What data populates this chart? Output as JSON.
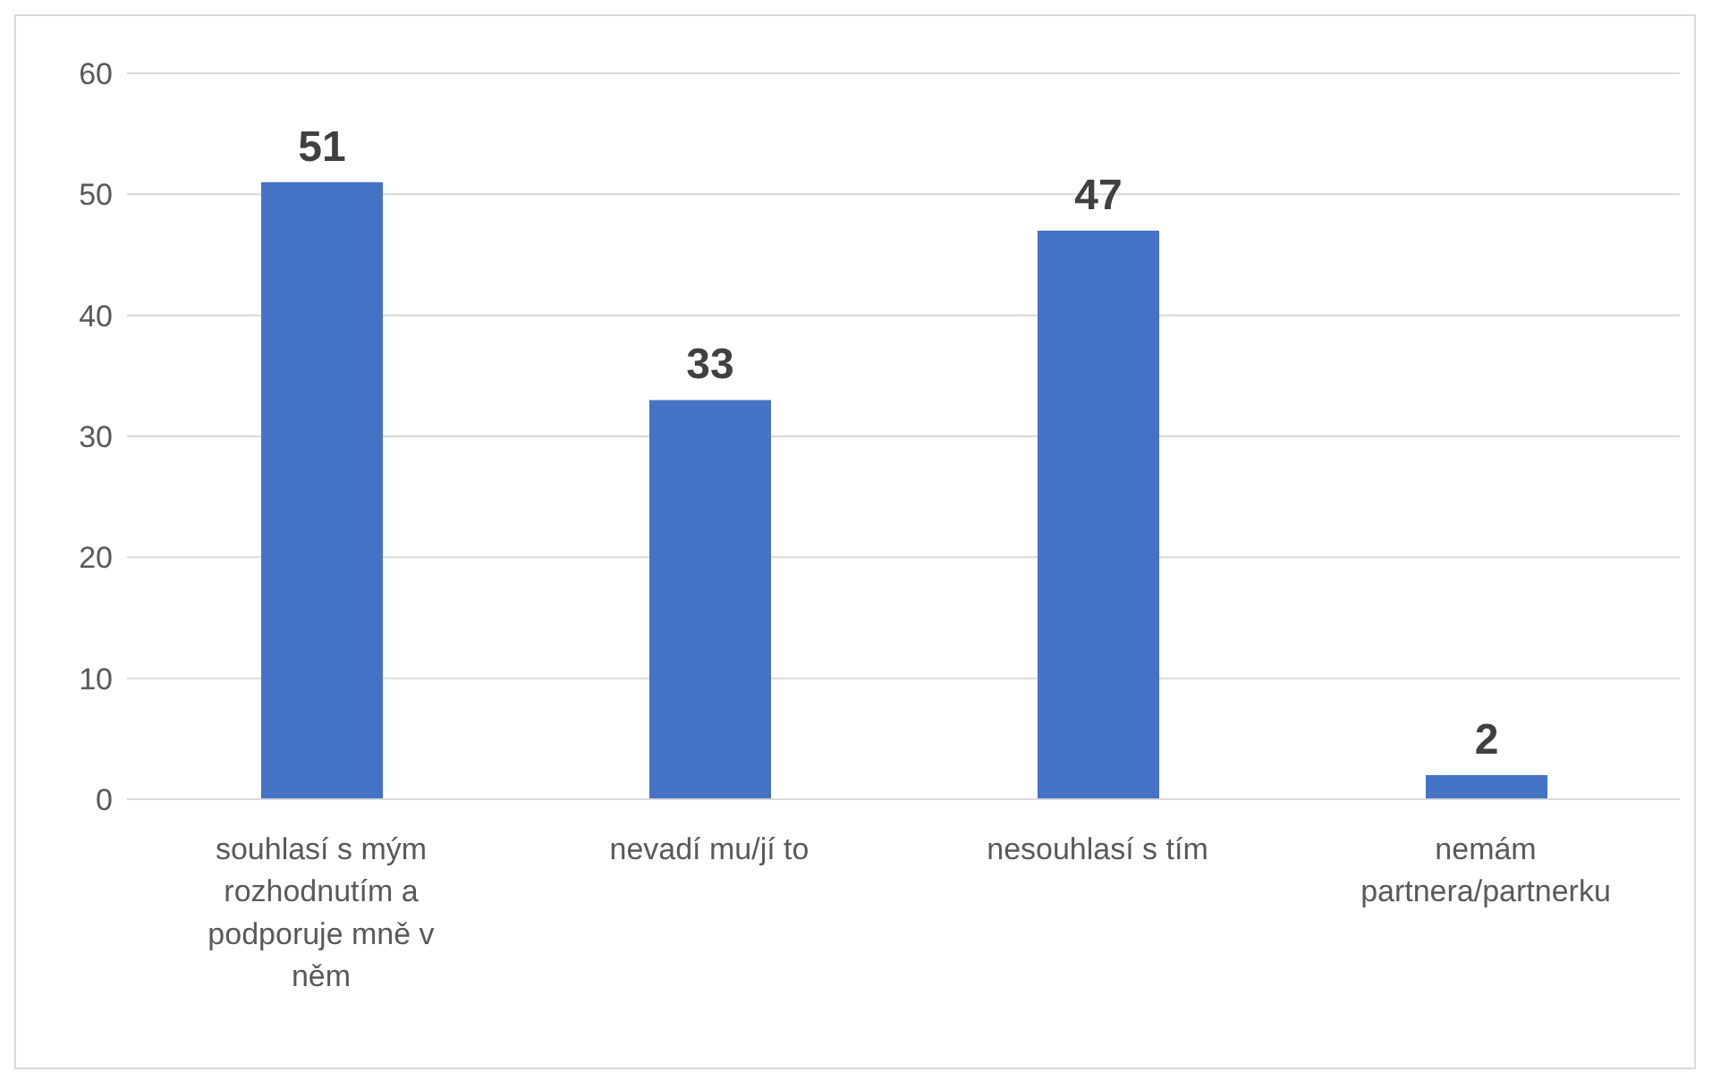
{
  "chart_data": {
    "type": "bar",
    "categories": [
      "souhlasí s mým rozhodnutím a podporuje mně v něm",
      "nevadí mu/jí to",
      "nesouhlasí s tím",
      "nemám partnera/partnerku"
    ],
    "values": [
      51,
      33,
      47,
      2
    ],
    "color": "#4472c4",
    "ylim": [
      0,
      60
    ],
    "yticks": [
      0,
      10,
      20,
      30,
      40,
      50,
      60
    ],
    "grid": "y",
    "data_labels": true
  }
}
